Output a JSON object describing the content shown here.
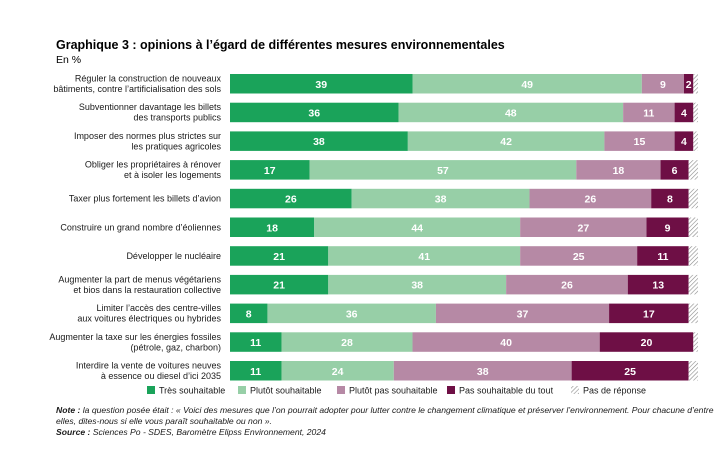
{
  "title": "Graphique 3 : opinions à l’égard de différentes mesures environnementales",
  "subtitle": "En %",
  "chart_data": {
    "type": "bar",
    "orientation": "horizontal",
    "stacked": true,
    "xlim": [
      0,
      100
    ],
    "grid": false,
    "legend_position": "bottom",
    "categories": [
      [
        "Réguler la construction de nouveaux",
        "bâtiments, contre l’artificialisation des sols"
      ],
      [
        "Subventionner davantage les billets",
        "des transports publics"
      ],
      [
        "Imposer des normes plus strictes sur",
        "les pratiques agricoles"
      ],
      [
        "Obliger les propriétaires à rénover",
        "et à isoler les logements"
      ],
      [
        "Taxer plus fortement les billets d’avion"
      ],
      [
        "Construire un grand nombre d’éoliennes"
      ],
      [
        "Développer le nucléaire"
      ],
      [
        "Augmenter la part de menus végétariens",
        "et bios dans la restauration collective"
      ],
      [
        "Limiter l’accès des centre-villes",
        "aux voitures électriques ou hybrides"
      ],
      [
        "Augmenter la taxe sur les énergies fossiles",
        "(pétrole, gaz, charbon)"
      ],
      [
        "Interdire la vente de voitures neuves",
        "à essence ou diesel d’ici 2035"
      ]
    ],
    "series": [
      {
        "name": "Très souhaitable",
        "color": "#1aa35a",
        "values": [
          39,
          36,
          38,
          17,
          26,
          18,
          21,
          21,
          8,
          11,
          11
        ]
      },
      {
        "name": "Plutôt souhaitable",
        "color": "#97cfa7",
        "values": [
          49,
          48,
          42,
          57,
          38,
          44,
          41,
          38,
          36,
          28,
          24
        ]
      },
      {
        "name": "Plutôt pas souhaitable",
        "color": "#b689a5",
        "values": [
          9,
          11,
          15,
          18,
          26,
          27,
          25,
          26,
          37,
          40,
          38
        ]
      },
      {
        "name": "Pas souhaitable du tout",
        "color": "#6e0f45",
        "values": [
          2,
          4,
          4,
          6,
          8,
          9,
          11,
          13,
          17,
          20,
          25
        ]
      },
      {
        "name": "Pas de réponse",
        "color": "hatch",
        "values": [
          1,
          1,
          1,
          2,
          2,
          2,
          2,
          2,
          2,
          1,
          2
        ]
      }
    ]
  },
  "note": {
    "label": "Note :",
    "text": "la question posée était : « Voici des mesures que l’on pourrait adopter pour lutter contre le changement climatique et préserver l’environnement. Pour chacune d’entre elles, dites-nous si elle vous paraît souhaitable ou non ».",
    "source_label": "Source :",
    "source_text": "Sciences Po - SDES, Baromètre Elipss Environnement, 2024"
  }
}
